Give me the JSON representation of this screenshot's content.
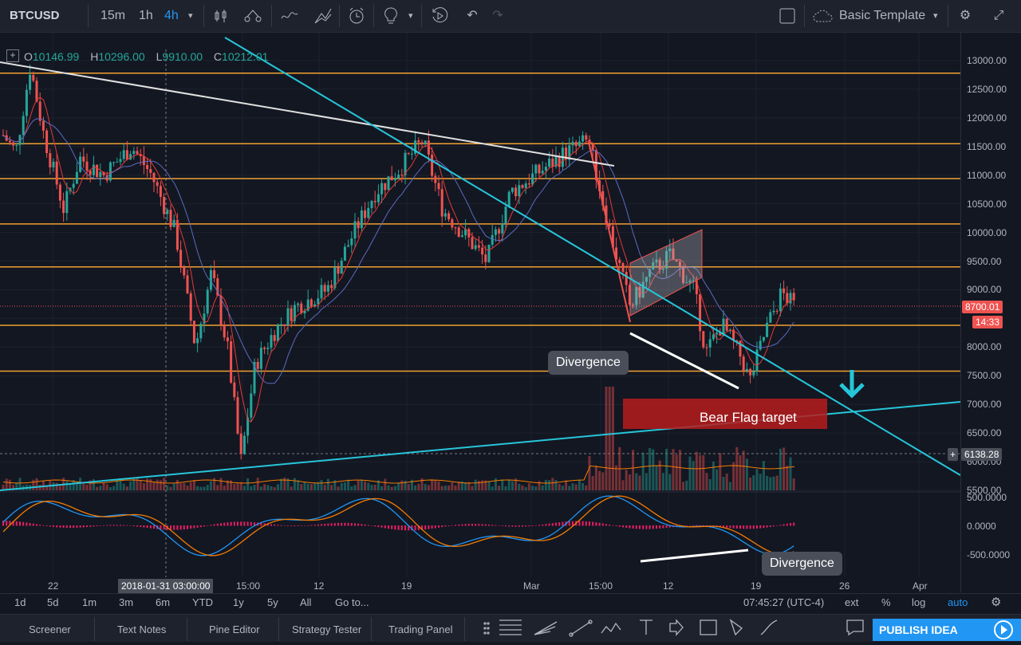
{
  "header": {
    "symbol": "BTCUSD",
    "intervals": [
      "15m",
      "1h",
      "4h"
    ],
    "active_interval": "4h",
    "template": "Basic Template"
  },
  "ohlc": {
    "o_label": "O",
    "o": "10146.99",
    "h_label": "H",
    "h": "10296.00",
    "l_label": "L",
    "l": "9910.00",
    "c_label": "C",
    "c": "10212.01"
  },
  "price_axis": {
    "ticks": [
      "13000.00",
      "12500.00",
      "12000.00",
      "11500.00",
      "11000.00",
      "10500.00",
      "10000.00",
      "9500.00",
      "9000.00",
      "8500.00",
      "8000.00",
      "7500.00",
      "7000.00",
      "6500.00",
      "6000.00",
      "5500.00"
    ],
    "last_price": "8700.01",
    "countdown": "14:33",
    "crosshair_price": "6138.28"
  },
  "indicator_axis": {
    "ticks": [
      "500.0000",
      "0.0000",
      "-500.0000"
    ]
  },
  "annotations": {
    "divergence_top": "Divergence",
    "divergence_bottom": "Divergence",
    "bear_flag": "Bear Flag target"
  },
  "time_axis": {
    "ticks": [
      "22",
      "15:00",
      "12",
      "19",
      "Mar",
      "15:00",
      "12",
      "19",
      "26",
      "Apr"
    ],
    "crosshair_time": "2018-01-31 03:00:00"
  },
  "range_bar": {
    "items": [
      "1d",
      "5d",
      "1m",
      "3m",
      "6m",
      "YTD",
      "1y",
      "5y",
      "All",
      "Go to..."
    ],
    "clock": "07:45:27 (UTC-4)",
    "ext": "ext",
    "percent": "%",
    "log": "log",
    "auto": "auto"
  },
  "bottom_tabs": [
    "Screener",
    "Text Notes",
    "Pine Editor",
    "Strategy Tester",
    "Trading Panel"
  ],
  "publish": "PUBLISH IDEA",
  "colors": {
    "up": "#26a69a",
    "down": "#ef5350",
    "accent": "#2196f3",
    "level": "#f0a030",
    "trend": "#26c6da"
  }
}
